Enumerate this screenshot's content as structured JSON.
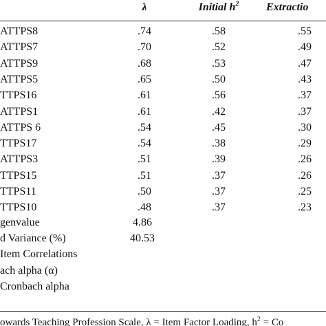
{
  "table": {
    "header": [
      "λ",
      {
        "main": "Initial h",
        "sup": "2"
      },
      "Extractio"
    ],
    "rows": [
      [
        "ATTPS8",
        ".74",
        ".58",
        ".55"
      ],
      [
        "ATTPS7",
        ".70",
        ".52",
        ".49"
      ],
      [
        "ATTPS9",
        ".68",
        ".53",
        ".47"
      ],
      [
        "ATTPS5",
        ".65",
        ".50",
        ".43"
      ],
      [
        "TTPS16",
        ".61",
        ".56",
        ".37"
      ],
      [
        "ATTPS1",
        ".61",
        ".42",
        ".37"
      ],
      [
        "ATTPS 6",
        ".54",
        ".45",
        ".30"
      ],
      [
        "TTPS17",
        ".54",
        ".38",
        ".29"
      ],
      [
        "ATTPS3",
        ".51",
        ".39",
        ".26"
      ],
      [
        "TTPS15",
        ".51",
        ".37",
        ".26"
      ],
      [
        "TTPS11",
        ".50",
        ".37",
        ".25"
      ],
      [
        "TTPS10",
        ".48",
        ".37",
        ".23"
      ]
    ],
    "summary": [
      [
        "genvalue",
        "4.86"
      ],
      [
        "d Variance (%)",
        "40.53"
      ],
      [
        "Item Correlations"
      ],
      [
        "ach alpha (α)"
      ],
      [
        "Cronbach alpha"
      ]
    ]
  },
  "footnote": {
    "before": "owards Teaching Profession Scale, λ = Item Factor Loading, h",
    "sup": "2",
    "after": " = Co"
  }
}
